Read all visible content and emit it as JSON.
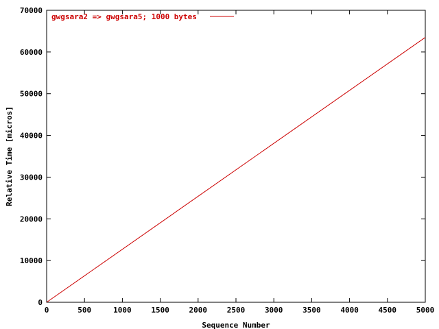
{
  "chart_data": {
    "type": "line",
    "title": "",
    "xlabel": "Sequence Number",
    "ylabel": "Relative Time [micros]",
    "xlim": [
      0,
      5000
    ],
    "ylim": [
      0,
      70000
    ],
    "x_ticks": [
      0,
      500,
      1000,
      1500,
      2000,
      2500,
      3000,
      3500,
      4000,
      4500,
      5000
    ],
    "y_ticks": [
      0,
      10000,
      20000,
      30000,
      40000,
      50000,
      60000,
      70000
    ],
    "grid": false,
    "legend_position": "top-left",
    "series": [
      {
        "name": "gwgsara2 => gwgsara5; 1000 bytes",
        "color": "#cc0000",
        "x": [
          0,
          5000
        ],
        "y": [
          0,
          63500
        ]
      }
    ]
  }
}
